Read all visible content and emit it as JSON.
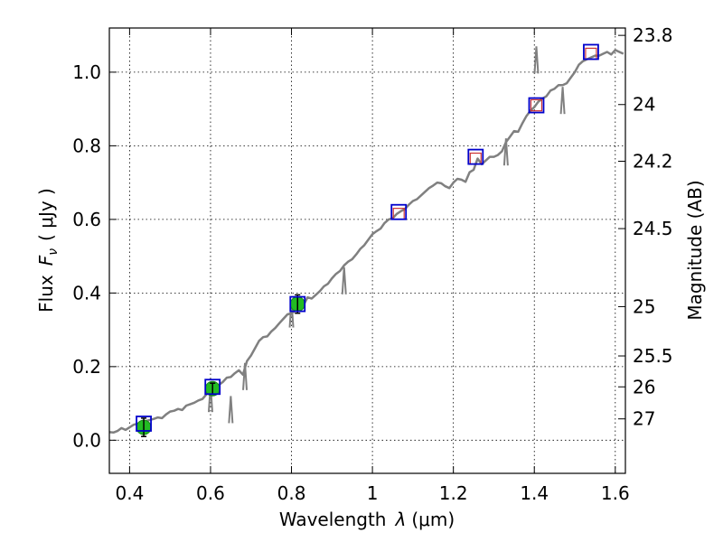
{
  "chart_data": {
    "type": "scatter",
    "xlabel_text": "Wavelength",
    "xlabel_symbol": "λ",
    "xlabel_unit": "(μm)",
    "ylabel_text": "Flux",
    "ylabel_symbol": "F",
    "ylabel_subscript": "ν",
    "ylabel_unit": "( μJy )",
    "y2label": "Magnitude (AB)",
    "xlim": [
      0.35,
      1.625
    ],
    "ylim": [
      -0.09,
      1.12
    ],
    "grid": true,
    "x_ticks": [
      {
        "value": 0.4,
        "label": "0.4"
      },
      {
        "value": 0.6,
        "label": "0.6"
      },
      {
        "value": 0.8,
        "label": "0.8"
      },
      {
        "value": 1.0,
        "label": "1"
      },
      {
        "value": 1.2,
        "label": "1.2"
      },
      {
        "value": 1.4,
        "label": "1.4"
      },
      {
        "value": 1.6,
        "label": "1.6"
      }
    ],
    "y_ticks": [
      {
        "value": 0.0,
        "label": "0.0"
      },
      {
        "value": 0.2,
        "label": "0.2"
      },
      {
        "value": 0.4,
        "label": "0.4"
      },
      {
        "value": 0.6,
        "label": "0.6"
      },
      {
        "value": 0.8,
        "label": "0.8"
      },
      {
        "value": 1.0,
        "label": "1.0"
      }
    ],
    "y2_ticks": [
      {
        "flux": 1.1,
        "label": "23.8"
      },
      {
        "flux": 0.912,
        "label": "24"
      },
      {
        "flux": 0.758,
        "label": "24.2"
      },
      {
        "flux": 0.575,
        "label": "24.5"
      },
      {
        "flux": 0.363,
        "label": "25"
      },
      {
        "flux": 0.229,
        "label": "25.5"
      },
      {
        "flux": 0.145,
        "label": "26"
      },
      {
        "flux": 0.058,
        "label": "27"
      }
    ],
    "series": [
      {
        "kind": "line",
        "color": "#808080",
        "x": [
          0.35,
          0.36,
          0.37,
          0.38,
          0.39,
          0.4,
          0.41,
          0.42,
          0.43,
          0.44,
          0.45,
          0.46,
          0.47,
          0.48,
          0.49,
          0.5,
          0.51,
          0.52,
          0.53,
          0.54,
          0.55,
          0.56,
          0.57,
          0.58,
          0.59,
          0.6,
          0.61,
          0.62,
          0.63,
          0.64,
          0.65,
          0.66,
          0.67,
          0.68,
          0.69,
          0.7,
          0.71,
          0.72,
          0.73,
          0.74,
          0.75,
          0.76,
          0.77,
          0.78,
          0.79,
          0.8,
          0.81,
          0.82,
          0.83,
          0.84,
          0.85,
          0.86,
          0.87,
          0.88,
          0.89,
          0.9,
          0.91,
          0.92,
          0.93,
          0.94,
          0.95,
          0.96,
          0.97,
          0.98,
          0.99,
          1.0,
          1.01,
          1.02,
          1.03,
          1.04,
          1.05,
          1.06,
          1.07,
          1.08,
          1.09,
          1.1,
          1.11,
          1.12,
          1.13,
          1.14,
          1.15,
          1.16,
          1.17,
          1.18,
          1.19,
          1.2,
          1.21,
          1.22,
          1.23,
          1.24,
          1.25,
          1.26,
          1.27,
          1.28,
          1.29,
          1.3,
          1.31,
          1.32,
          1.33,
          1.34,
          1.35,
          1.36,
          1.37,
          1.38,
          1.39,
          1.4,
          1.41,
          1.42,
          1.43,
          1.44,
          1.45,
          1.46,
          1.47,
          1.48,
          1.49,
          1.5,
          1.51,
          1.52,
          1.53,
          1.54,
          1.55,
          1.56,
          1.57,
          1.58,
          1.59,
          1.6,
          1.61,
          1.62
        ],
        "y": [
          0.022,
          0.021,
          0.025,
          0.033,
          0.028,
          0.035,
          0.042,
          0.045,
          0.048,
          0.052,
          0.055,
          0.058,
          0.062,
          0.06,
          0.07,
          0.078,
          0.08,
          0.085,
          0.082,
          0.094,
          0.098,
          0.102,
          0.108,
          0.112,
          0.125,
          0.132,
          0.142,
          0.15,
          0.158,
          0.17,
          0.172,
          0.182,
          0.19,
          0.178,
          0.215,
          0.23,
          0.25,
          0.27,
          0.28,
          0.282,
          0.295,
          0.305,
          0.318,
          0.33,
          0.342,
          0.345,
          0.352,
          0.365,
          0.368,
          0.388,
          0.385,
          0.395,
          0.405,
          0.418,
          0.425,
          0.44,
          0.452,
          0.46,
          0.475,
          0.485,
          0.492,
          0.505,
          0.52,
          0.53,
          0.545,
          0.56,
          0.568,
          0.575,
          0.59,
          0.6,
          0.603,
          0.615,
          0.622,
          0.628,
          0.64,
          0.65,
          0.655,
          0.665,
          0.675,
          0.685,
          0.692,
          0.7,
          0.698,
          0.69,
          0.685,
          0.7,
          0.71,
          0.708,
          0.702,
          0.728,
          0.735,
          0.765,
          0.75,
          0.76,
          0.77,
          0.77,
          0.775,
          0.785,
          0.81,
          0.825,
          0.84,
          0.838,
          0.86,
          0.88,
          0.895,
          0.905,
          0.92,
          0.928,
          0.935,
          0.95,
          0.955,
          0.965,
          0.965,
          0.97,
          0.985,
          1.0,
          1.02,
          1.03,
          1.035,
          1.04,
          1.045,
          1.045,
          1.05,
          1.055,
          1.048,
          1.06,
          1.055,
          1.05
        ]
      },
      {
        "kind": "spikes",
        "color": "#808080",
        "x": [
          0.6,
          0.65,
          0.685,
          0.8,
          0.93,
          1.33,
          1.405,
          1.47
        ],
        "y": [
          0.15,
          0.12,
          0.21,
          0.38,
          0.47,
          0.82,
          1.07,
          0.96
        ]
      },
      {
        "kind": "model_squares",
        "color": "#0000cc",
        "x": [
          0.435,
          0.605,
          0.815,
          1.065,
          1.255,
          1.405,
          1.54
        ],
        "y": [
          0.045,
          0.145,
          0.37,
          0.62,
          0.77,
          0.91,
          1.055
        ]
      },
      {
        "kind": "observed_points",
        "color": "#22bb22",
        "x": [
          0.435,
          0.605,
          0.815
        ],
        "y": [
          0.035,
          0.14,
          0.37
        ],
        "yerr": [
          0.025,
          0.015,
          0.025
        ]
      },
      {
        "kind": "observed_bars",
        "color": "#cc3333",
        "x": [
          1.065,
          1.255,
          1.405,
          1.54
        ],
        "y": [
          0.615,
          0.765,
          0.91,
          1.05
        ],
        "yerr": [
          0.015,
          0.015,
          0.015,
          0.015
        ]
      }
    ]
  }
}
